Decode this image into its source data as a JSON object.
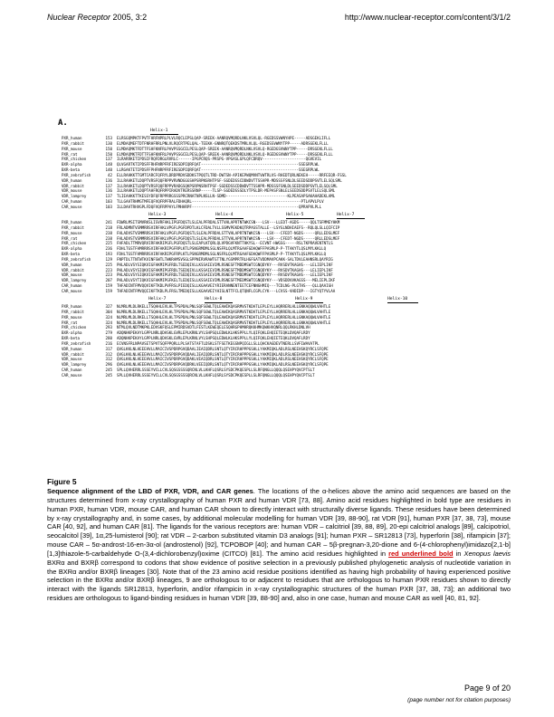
{
  "header": {
    "journal": "Nuclear Receptor",
    "year_vol": "2005, 3:2",
    "url": "http://www.nuclear-receptor.com/content/3/1/2"
  },
  "panel_label": "A.",
  "blocks": [
    {
      "helices": [
        "Helix-1"
      ],
      "rows": [
        [
          "PXR_human",
          "153",
          "ELRSGQMPKTFPVTFHRFNPRLPLVLRQCLEPSLQAP-SREEK-AANRQVMQRDLNKLVSVLQL-RGEDSSVWNYHPE-----ADSGEKLIFLL"
        ],
        [
          "PXR_rabbit",
          "130",
          "ELMDAQMEFTDTFNRHFRRLPNLVLRQCRTPELQAL-TEEKK-GNNRQTQEKDSTMRLVLQL-RGEDSSVWNYTPP-----ADRSGEKLFLLL"
        ],
        [
          "PXR_mouse",
          "150",
          "ELMDAQMKTFDTTFSHFKNFRLPAVPSSGCELPESLQAP-SREEK-AANRQVMQRDLNKLVSVLQ-RGEDGSVWNYTPP-----DRSGEKLFLLL"
        ],
        [
          "PXR_rat",
          "150",
          "ELMDAQMKTFDTTFSHFKNFRLPAVPSSGCELPESLQAP-SREEK-AANRQVMQRDLNKLVSVLQ-RGEDGSVWNYTPP-----DRSGEKLFLLL"
        ],
        [
          "PXR_chicken",
          "137",
          "ILRARRKETIPDSIFRQFDRGLRVRLC------IPGPCRQS-PRSPG-VPGASLGPLQFCDRQV-------------------QGVEVIL"
        ],
        [
          "BXR-alpha",
          "148",
          "QLVGARTKTIPDSFFRHFNRPFRFIRESDPIQRFQAT-------------------------------------------SSEGRPLWL"
        ],
        [
          "BXR-beta",
          "140",
          "LLRGAKTETIPDSFFPHFNRPFRFIRESDPIQRFQAT-------------------------------------------SSEGRPLWL"
        ],
        [
          "PXR_zebrafish",
          "42",
          "ELLRAHKKTTGMTCARCFQFRYLDRDPRDVSDDKSTPQQTLTRD-DWTSN-APIKEPWQMVNTVWTRLVS-RHEDTQRLNEKEH-----RRFEEQR-FSSL"
        ],
        [
          "VDR_human",
          "136",
          "ILLRAHKETLDQPTVRSFQQFRPPVRVNDGGGSHPSRPNSRHTPSF-SGDEDSSCDDWDVTTSSHPR-MDSSSFSNLDLSEEDSDDPSVTLELSQLSML"
        ],
        [
          "VDR_rabbit",
          "137",
          "ILLRAHKETLDQPTVRSFQQFRPPVRADGSQKPSRPNSRHTPSF-SGDEDSSCDDWDVTTSSHPR-MDSSSFSNLDLSEEDSDDPSVTLELSQLSML"
        ],
        [
          "VDR_mouse",
          "136",
          "ILLRAHKETLDQPTAHFRQFRPPIRADVTRERSSRNP-----TLSP-SGDEDSSSDLYTPSLDR-MEPASFSNLELSEEDSDDPSVTLELSQLSML"
        ],
        [
          "VDR_lamprey",
          "137",
          "TLIEAHKKTTKESSYDFQFRPPRRGSSSPRCRNATNPLNSLLN-SDMD---------------------------KLPEASAPSAKAHADEKLAML"
        ],
        [
          "CAR_human",
          "103",
          "TLLGAHTRHMGTMFEQFVQFRPFRALFDHAQRL------------------------------------------------PTLAPVLPLV"
        ],
        [
          "CAR_mouse",
          "103",
          "ILLDAHTRHVGPLFDQFVQFRPPAYLFMHHRPF-----------------------------------------------QPRAPVLPLL"
        ]
      ]
    },
    {
      "helices": [
        "Helix-3",
        "Helix-4",
        "Helix-5",
        "Helix-7"
      ],
      "rows": [
        [
          "PXR_human",
          "241",
          "FDWRLMSITSMVRKSLISVRFAKLIPGFDQSTLSLEALPFRDALSTTVHLAPRTNTWKCSN---LSV---LLEDT-AGDS-----QQLTSFMMEYHKM"
        ],
        [
          "PXR_rabbit",
          "218",
          "FRLADMNTVSMMRRSVIRFAKLVPGFLPGFDPDTLKLCFDALTVLLSSMVPEKDKQTRPASSTALLE--LSYGLNDHIAEFS--RQLQLSLLQIFCIP"
        ],
        [
          "PXR_mouse",
          "238",
          "FHLADVSTVSMMRRSVIRFAKLVPGFLPGFDQSTLSLEALPFRDALSTTVHLAPRTNTWKCSN---LSV---CFEDT-NGDS-----QRLLEDSLMEF"
        ],
        [
          "PXR_rat",
          "238",
          "FHLADVSTVSMMRRSVIRFAKLVPGFLPGFDQSTLSLEALPFRDALSTTVHLAPRTNTWKCSN---LSV---CFEDT-NGDS-----QRLLEDSLMEF"
        ],
        [
          "PXR_chicken",
          "225",
          "FHFADLTTMRVQRVIRFAKRIPGFLPGFDQSTLSLEAPLKTQRLQLVPDGVFKNTTHKYSL--ECVNT-HWGSG-----RSLTKPRAVENTNTLS"
        ],
        [
          "BXR-alpha",
          "236",
          "FDHLTGSTFHMRRRSVIRFAKRIPGFRPLKTLPSNGRMDMLSGLNSFRLQLMTRGAAFGDAQWFFPASMLP-P-TTAKYTLQSLMYLKKLLQ"
        ],
        [
          "BXR-beta",
          "193",
          "FDHLTGSTFHMRRRSVIRFAKRIPGFRPLKTLPSNGRMDMLSGLNSFRLQLMTRGAAFGDAQWFFPASMLP-P-TTAKYTLQSLMYLKKLLQ"
        ],
        [
          "PXR_zebrafish",
          "129",
          "FNPTDLTTNTWTKVINFSWTLTWKRAMSVSGLSPPNIRVRAWTGTTNLYGSMPRTRLHGFGATVDDMAVPCAKK-SALTDVLEAHNSRLQAYRIG"
        ],
        [
          "VDR_human",
          "225",
          "PHLADLVSYSIQKVIGFAKMIPGFRDLTSEDQIVLLKSSAIEVIMLRSNESFTMDDMSWTCGNQDYKY---RVSDVTKAGHS---LELIEPLIKF"
        ],
        [
          "VDR_rabbit",
          "223",
          "PHLADLVSYSIQKVIGFAKMIPGFRDLTSEDQIVLLKSSAIEVIMLRSNESFTMDDMSWTCGNQDYKY---RVSDVTKAGHS---LELIEPLIKF"
        ],
        [
          "VDR_mouse",
          "223",
          "PHLADLVSYSIQKVIGFAKMIPGFRDLTSEDQIVLLKSSAIEVIMLRSNESFTMDDMSWTCGNQDYKY---RVSDVTKAGHS---LELIEPLIKF"
        ],
        [
          "VDR_lamprey",
          "207",
          "PHLADLVSYTIQKVIGFAKMIPGFKELTLEDQISLLKSSAIEVIMLRSNESFTMEDMSWTCGNQDYKY---VDSDDVVKAGSS---MELIEPLIKF"
        ],
        [
          "CAR_human",
          "159",
          "THFADINTFMVQQVIKFTKDLPVFRSLPIEDQISLLKGAAVEIYRIERANNENTEETCEFNNGHMIQ---TCDLNG-PLGTHS---QLLQAAIGH"
        ],
        [
          "CAR_mouse",
          "159",
          "THFADINTFMVQQIIKFTKDLPLFRSLTMEDQISLLKGAAVEIYHISLNTTFCLQTQNFLCGPLCYK---LCVSS-VHDIDP---IGTYQTYVLAA"
        ]
      ]
    },
    {
      "helices": [
        "Helix-7",
        "Helix-8",
        "Helix-9",
        "Helix-10"
      ],
      "rows": [
        [
          "PXR_human",
          "327",
          "NLMRLMLDLRKELLTSQAHLEVLHLTPSPDALPNLSQFSGWLTQLEAWIKQASRMVSTKDATLEPLEYLLHQRRERLHLLGNKAQQWLVAHTLE"
        ],
        [
          "PXR_rabbit",
          "304",
          "NLMRLMLDLRKELLTSQAHLEVLHLTPSPDALPNLSQFSGWLTQLEAWIKQASRMVSTKDATLEPLEYLLHQRRERLHLLGNKAQQWLVAHTLE"
        ],
        [
          "PXR_mouse",
          "324",
          "NLMRLMLDLRKELLTSQAHLEVLHLTPSPDALPNLSQFSGWLTQLEAWIKQASRMVSTKDATLEPLEYLLHQRRERLHLLGNKAQQWLVAHTLE"
        ],
        [
          "PXR_rat",
          "324",
          "NLMRLMLDLRKELLTSQAHLEVLHLTPSPDALPNLSQFSGWLTQLEAWIKQASRMVSTKDATLEPLEYLLHQRRERLHLLGNKAQQWLVAHTLE"
        ],
        [
          "PXR_chicken",
          "293",
          "NTMLQVLNDTMKPKLEDVSKFQSLEPMIRDSVDTLFESTLKEWEQELESQHRGPHMHRQKKHMKQWKHVQNRLQQLRKHLDNLVH"
        ],
        [
          "BXR-alpha",
          "279",
          "ADQNHKPEKAYLGPPLNRLQDASKLGVRLEPLKRNLVYLSHPSQLEDWLKLHKSPPLLYLQIFQKLEHQIETEQKLDVQAFLRDY"
        ],
        [
          "BXR-beta",
          "280",
          "ADQNHKPEKAYLGPPLNRLQDASKLGVRLEPLKRNLVYLSHPSQLEDWLKLHKSPPLLYLQIFQKLEHQIETEQKLDVQAFLRDY"
        ],
        [
          "PXR_zebrafish",
          "216",
          "ECVNSFRLNPAVSETSPVTSQFPPQRLLPLSATSTAFTLDSKLSTFSETKEGSNPQIGLLSLLQHCKAGDEVTNERLLSVFIWAVATPL"
        ],
        [
          "VDR_human",
          "317",
          "QVGLKKLNLHEEEHVLLMAICIVSPDRPGVQDAALIEAIQDRLSNTLQTYIRCRHPPPGSHLLYAKMIQKLADLRSLNEEHSKQYRCLSFQPE"
        ],
        [
          "VDR_rabbit",
          "312",
          "QVGLKKLNLHEEEHVLLMAICIVSPDRPGVQDAALIEAIQDRLSNTLQTYIRCRHPPPGSHLLYAKMIQKLADLRSLNEEHSKQYRCLSFQPE"
        ],
        [
          "VDR_mouse",
          "312",
          "QVGLKKLNLHEEEHVLLMAICIVSPDRPGVQDAKLVEAIQDRLSNTLQTYIRCRHPPPGSHLLYAKMIQKLADLRSLNEEHSKQYRCLSFQPE"
        ],
        [
          "VDR_lamprey",
          "296",
          "QVGLKKLNLHEEEHVLLMAICIVSPDRPGVQDRKLVEEIQDRLSNTLQTYIRCRHPPPGSHLLYAKMIQKLADLRSLNEEHSKQYRCLSFQPE"
        ],
        [
          "CAR_human",
          "245",
          "SPLLQVHERRLSSSEYVCLLCVLSQSGSSSSQRCNLVLLKHFLQSRLSYSDCPKQESPLLSLRFQNGLLQQQLQSEHPYQVCPTSLT"
        ],
        [
          "CAR_mouse",
          "245",
          "SPLLQVHERRLSSSEYVCLLCVLSQSGSSSSQRCNLVLLKHFLQSRLSYSDCPKQESPLLSLRFQNGLLQQQLQSEHPYQVCPTSLT"
        ]
      ]
    }
  ],
  "figure": {
    "label": "Figure 5",
    "title": "Sequence alignment of the LBD of PXR, VDR, and CAR genes",
    "caption_part1": ". The locations of the α-helices above the amino acid sequences are based on the structures determined from x-ray crystallography of human PXR and human VDR [73, 88]. Amino acid residues highlighted in bold type are residues in human PXR, human VDR, mouse CAR, and human CAR shown to directly interact with structurally diverse ligands. These residues have been determined by x-ray crystallography and, in some cases, by additional molecular modelling for human VDR [39, 88-90], rat VDR [91], human PXR [37, 38, 73], mouse CAR [40, 92], and human CAR [81]. The ligands for the various receptors are: human VDR – calcitriol [39, 88, 89], 20-epi calcitriol analogs [89], calcipotriol, seocalcitol [39], 1α,25-lumisterol [90]; rat VDR – 2-carbon substituted vitamin D3 analogs [91]; human PXR – SR12813 [73], hyperforin [38], rifampicin [37]; mouse CAR – 5α-androst-16-en-3α-ol (androstenol) [92], TCPOBOP [40]; and human CAR – 5β-pregnan-3,20-dione and 6-(4-chlorophenyl)imidazo[2,1-b][1,3]thiazole-5-carbaldehyde O-(3,4-dichlorobenzyl)oxime (CITCO) [81]. The amino acid residues highlighted in",
    "highlight_text": "red underlined bold",
    "in_word": "in",
    "species": "Xenopus laevis",
    "caption_part2": "BXRα and BXRβ correspond to codons that show evidence of positive selection in a previously published phylogenetic analysis of nucleotide variation in the BXRα and/or BXRβ lineages [30]. Note that of the 23 amino acid residue positions identified as having high probability of having experienced positive selection in the BXRα and/or BXRβ lineages, 9 are orthologous to or adjacent to residues that are orthologous to human PXR residues shown to directly interact with the ligands SR12813, hyperforin, and/or rifampicin in x-ray crystallographic structures of the human PXR [37, 38, 73]; an additional two residues are orthologous to ligand-binding residues in human VDR [39, 88-90] and, also in one case, human and mouse CAR as well [40, 81, 92]."
  },
  "footer": {
    "page": "Page 9 of 20",
    "note": "(page number not for citation purposes)"
  }
}
